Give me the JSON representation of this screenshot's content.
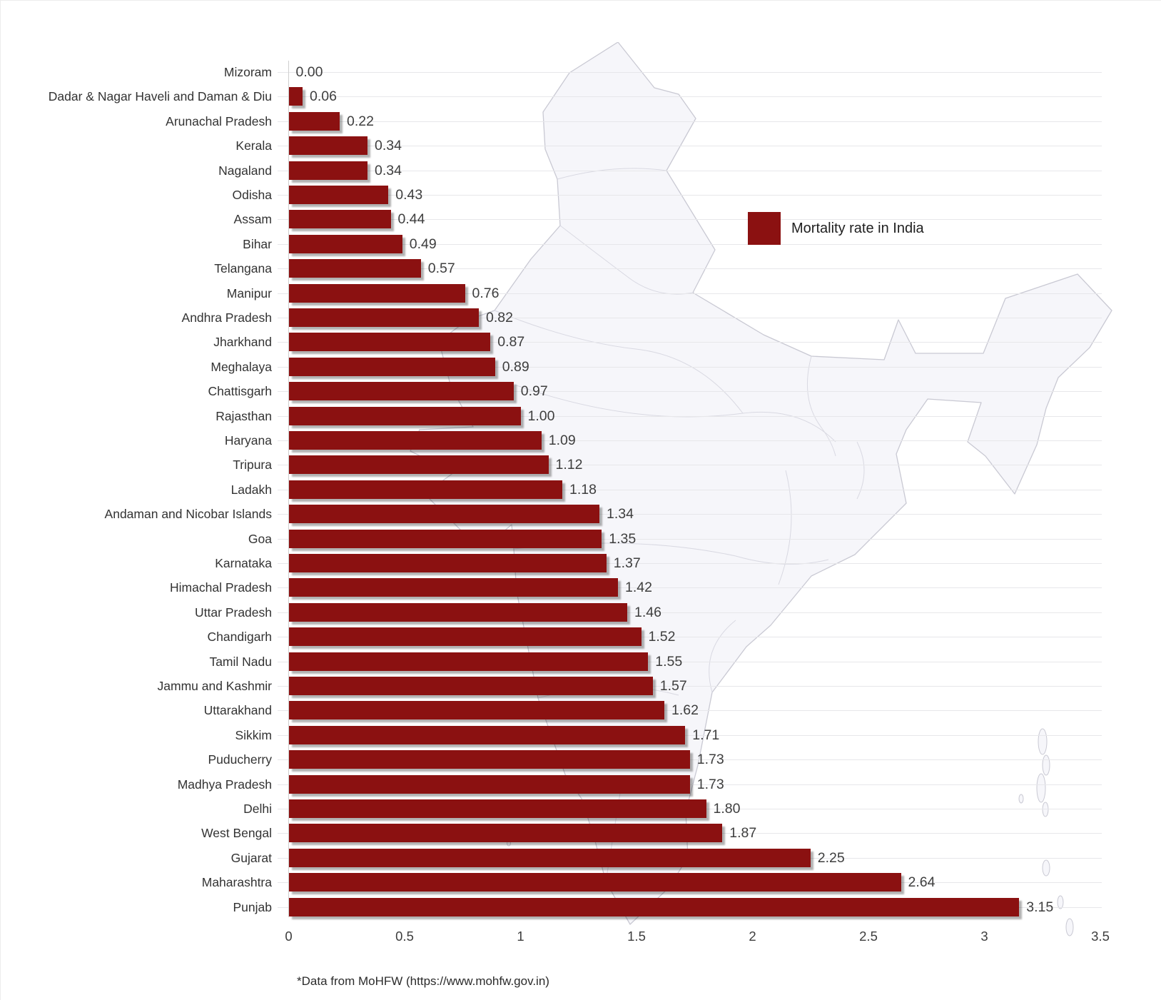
{
  "chart_data": {
    "type": "bar",
    "orientation": "horizontal",
    "title": "",
    "xlabel": "",
    "ylabel": "",
    "xlim": [
      0,
      3.5
    ],
    "x_tick_labels": [
      "0",
      "0.5",
      "1",
      "1.5",
      "2",
      "2.5",
      "3",
      "3.5"
    ],
    "grid": "horizontal category gridlines, light gray",
    "bar_color": "#8b1111",
    "legend": {
      "label": "Mortality rate in India",
      "position": "middle-right",
      "swatch_color": "#8b1111"
    },
    "categories": [
      "Mizoram",
      "Dadar & Nagar Haveli and Daman & Diu",
      "Arunachal Pradesh",
      "Kerala",
      "Nagaland",
      "Odisha",
      "Assam",
      "Bihar",
      "Telangana",
      "Manipur",
      "Andhra Pradesh",
      "Jharkhand",
      "Meghalaya",
      "Chattisgarh",
      "Rajasthan",
      "Haryana",
      "Tripura",
      "Ladakh",
      "Andaman and Nicobar Islands",
      "Goa",
      "Karnataka",
      "Himachal Pradesh",
      "Uttar Pradesh",
      "Chandigarh",
      "Tamil Nadu",
      "Jammu and Kashmir",
      "Uttarakhand",
      "Sikkim",
      "Puducherry",
      "Madhya Pradesh",
      "Delhi",
      "West Bengal",
      "Gujarat",
      "Maharashtra",
      "Punjab"
    ],
    "values": [
      0.0,
      0.06,
      0.22,
      0.34,
      0.34,
      0.43,
      0.44,
      0.49,
      0.57,
      0.76,
      0.82,
      0.87,
      0.89,
      0.97,
      1.0,
      1.09,
      1.12,
      1.18,
      1.34,
      1.35,
      1.37,
      1.42,
      1.46,
      1.52,
      1.55,
      1.57,
      1.62,
      1.71,
      1.73,
      1.73,
      1.8,
      1.87,
      2.25,
      2.64,
      3.15
    ],
    "value_labels": [
      "0.00",
      "0.06",
      "0.22",
      "0.34",
      "0.34",
      "0.43",
      "0.44",
      "0.49",
      "0.57",
      "0.76",
      "0.82",
      "0.87",
      "0.89",
      "0.97",
      "1.00",
      "1.09",
      "1.12",
      "1.18",
      "1.34",
      "1.35",
      "1.37",
      "1.42",
      "1.46",
      "1.52",
      "1.55",
      "1.57",
      "1.62",
      "1.71",
      "1.73",
      "1.73",
      "1.80",
      "1.87",
      "2.25",
      "2.64",
      "3.15"
    ]
  },
  "background_map": {
    "name": "india-states-outline-watermark",
    "stroke": "#c9c9d3",
    "fill": "#f6f6fa"
  },
  "footer": {
    "source_note": "*Data from MoHFW (https://www.mohfw.gov.in)"
  }
}
